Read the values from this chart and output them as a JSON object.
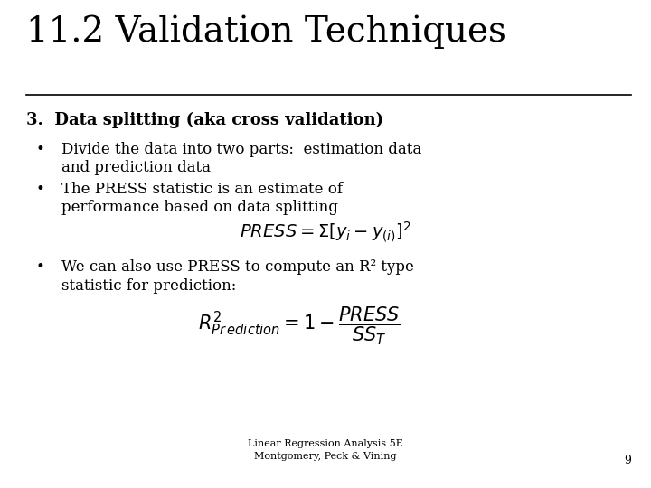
{
  "title": "11.2 Validation Techniques",
  "title_fontsize": 28,
  "background_color": "#ffffff",
  "text_color": "#000000",
  "heading3": "3.  Data splitting (aka cross validation)",
  "heading3_fontsize": 13,
  "bullet1_line1": "Divide the data into two parts:  estimation data",
  "bullet1_line2": "and prediction data",
  "bullet2_line1": "The PRESS statistic is an estimate of",
  "bullet2_line2": "performance based on data splitting",
  "bullet3_line1": "We can also use PRESS to compute an R² type",
  "bullet3_line2": "statistic for prediction:",
  "footer_line1": "Linear Regression Analysis 5E",
  "footer_line2": "Montgomery, Peck & Vining",
  "page_number": "9",
  "footer_fontsize": 8,
  "bullet_fontsize": 12,
  "formula_fontsize": 13
}
